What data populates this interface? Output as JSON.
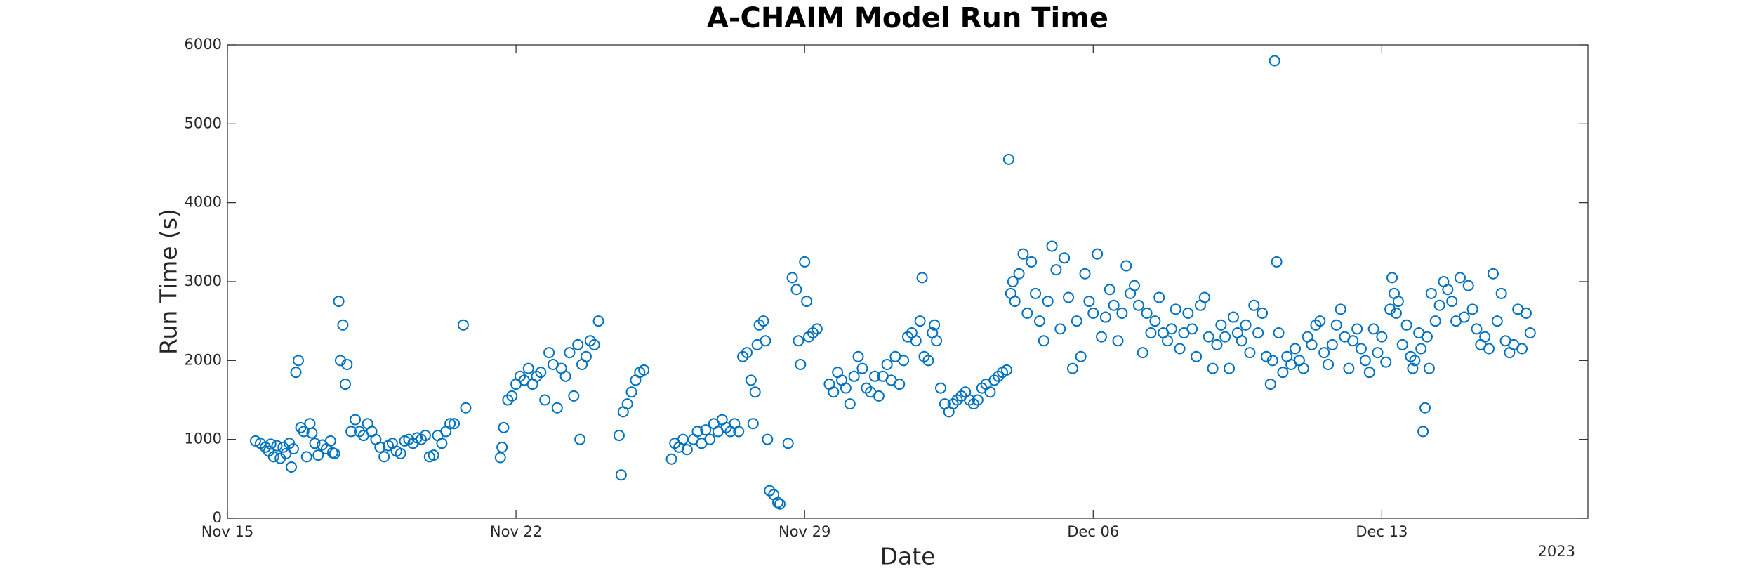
{
  "chart_data": {
    "type": "scatter",
    "title": "A-CHAIM Model Run Time",
    "xlabel": "Date",
    "ylabel": "Run Time (s)",
    "year_label": "2023",
    "xlim": [
      0,
      33
    ],
    "xticks": [
      {
        "value": 0,
        "label": "Nov 15"
      },
      {
        "value": 7,
        "label": "Nov 22"
      },
      {
        "value": 14,
        "label": "Nov 29"
      },
      {
        "value": 21,
        "label": "Dec 06"
      },
      {
        "value": 28,
        "label": "Dec 13"
      }
    ],
    "ylim": [
      0,
      6000
    ],
    "yticks": [
      0,
      1000,
      2000,
      3000,
      4000,
      5000,
      6000
    ],
    "grid": false,
    "marker": "open-circle",
    "x": [
      0.68,
      0.8,
      0.92,
      1.0,
      1.05,
      1.12,
      1.2,
      1.28,
      1.35,
      1.42,
      1.5,
      1.55,
      1.6,
      1.66,
      1.72,
      1.78,
      1.85,
      1.92,
      2.0,
      2.05,
      2.12,
      2.2,
      2.3,
      2.4,
      2.5,
      2.55,
      2.6,
      2.7,
      2.74,
      2.8,
      2.86,
      2.9,
      3.0,
      3.1,
      3.2,
      3.3,
      3.4,
      3.5,
      3.6,
      3.7,
      3.8,
      3.9,
      4.0,
      4.1,
      4.2,
      4.3,
      4.4,
      4.5,
      4.6,
      4.7,
      4.8,
      4.9,
      5.0,
      5.1,
      5.2,
      5.3,
      5.4,
      5.5,
      5.72,
      5.78,
      6.62,
      6.66,
      6.7,
      6.8,
      6.9,
      7.0,
      7.1,
      7.2,
      7.3,
      7.4,
      7.5,
      7.6,
      7.7,
      7.8,
      7.9,
      8.0,
      8.1,
      8.2,
      8.3,
      8.4,
      8.5,
      8.55,
      8.6,
      8.7,
      8.8,
      8.9,
      9.0,
      9.5,
      9.55,
      9.6,
      9.7,
      9.8,
      9.9,
      10.0,
      10.1,
      10.77,
      10.85,
      10.95,
      11.05,
      11.15,
      11.3,
      11.4,
      11.5,
      11.6,
      11.7,
      11.8,
      11.9,
      12.0,
      12.1,
      12.2,
      12.3,
      12.4,
      12.5,
      12.6,
      12.7,
      12.75,
      12.8,
      12.85,
      12.9,
      13.0,
      13.05,
      13.1,
      13.15,
      13.25,
      13.35,
      13.4,
      13.6,
      13.7,
      13.8,
      13.85,
      13.9,
      14.0,
      14.05,
      14.1,
      14.2,
      14.3,
      14.6,
      14.7,
      14.8,
      14.9,
      15.0,
      15.1,
      15.2,
      15.3,
      15.4,
      15.5,
      15.6,
      15.7,
      15.8,
      15.9,
      16.0,
      16.1,
      16.2,
      16.3,
      16.4,
      16.5,
      16.6,
      16.7,
      16.8,
      16.85,
      16.9,
      17.0,
      17.1,
      17.15,
      17.2,
      17.3,
      17.4,
      17.5,
      17.6,
      17.7,
      17.8,
      17.9,
      18.0,
      18.1,
      18.2,
      18.3,
      18.4,
      18.5,
      18.6,
      18.7,
      18.8,
      18.9,
      18.95,
      19.0,
      19.05,
      19.1,
      19.2,
      19.3,
      19.4,
      19.5,
      19.6,
      19.7,
      19.8,
      19.9,
      20.0,
      20.1,
      20.2,
      20.3,
      20.4,
      20.5,
      20.6,
      20.7,
      20.8,
      20.9,
      21.0,
      21.1,
      21.2,
      21.3,
      21.4,
      21.5,
      21.6,
      21.7,
      21.8,
      21.9,
      22.0,
      22.1,
      22.2,
      22.3,
      22.4,
      22.5,
      22.6,
      22.7,
      22.8,
      22.9,
      23.0,
      23.1,
      23.2,
      23.3,
      23.4,
      23.5,
      23.6,
      23.7,
      23.8,
      23.9,
      24.0,
      24.1,
      24.2,
      24.3,
      24.4,
      24.5,
      24.6,
      24.7,
      24.8,
      24.9,
      25.0,
      25.1,
      25.2,
      25.3,
      25.35,
      25.4,
      25.45,
      25.5,
      25.6,
      25.7,
      25.8,
      25.9,
      26.0,
      26.1,
      26.2,
      26.3,
      26.4,
      26.5,
      26.6,
      26.7,
      26.8,
      26.9,
      27.0,
      27.1,
      27.2,
      27.3,
      27.4,
      27.5,
      27.6,
      27.7,
      27.8,
      27.9,
      28.0,
      28.1,
      28.2,
      28.25,
      28.3,
      28.35,
      28.4,
      28.5,
      28.6,
      28.7,
      28.75,
      28.8,
      28.9,
      28.95,
      29.0,
      29.05,
      29.1,
      29.15,
      29.2,
      29.3,
      29.4,
      29.5,
      29.6,
      29.7,
      29.8,
      29.9,
      30.0,
      30.1,
      30.2,
      30.3,
      30.4,
      30.5,
      30.6,
      30.7,
      30.8,
      30.9,
      31.0,
      31.1,
      31.2,
      31.3,
      31.4,
      31.5,
      31.6
    ],
    "series": [
      {
        "name": "Run Time",
        "color": "#0072bd",
        "values": [
          980,
          950,
          900,
          850,
          940,
          780,
          920,
          760,
          900,
          820,
          950,
          650,
          880,
          1850,
          2000,
          1150,
          1100,
          780,
          1200,
          1080,
          950,
          800,
          930,
          880,
          980,
          830,
          820,
          2750,
          2000,
          2450,
          1700,
          1950,
          1100,
          1250,
          1100,
          1050,
          1200,
          1100,
          1000,
          900,
          780,
          920,
          950,
          850,
          820,
          980,
          1000,
          950,
          1020,
          1000,
          1050,
          780,
          800,
          1050,
          950,
          1100,
          1200,
          1200,
          2450,
          1400,
          770,
          900,
          1150,
          1500,
          1550,
          1700,
          1800,
          1750,
          1900,
          1700,
          1800,
          1850,
          1500,
          2100,
          1950,
          1400,
          1900,
          1800,
          2100,
          1550,
          2200,
          1000,
          1950,
          2050,
          2250,
          2200,
          2500,
          1050,
          550,
          1350,
          1450,
          1600,
          1750,
          1850,
          1880,
          750,
          950,
          900,
          1000,
          870,
          1000,
          1100,
          950,
          1120,
          1000,
          1200,
          1100,
          1250,
          1150,
          1100,
          1200,
          1100,
          2050,
          2100,
          1750,
          1200,
          1600,
          2200,
          2450,
          2500,
          2250,
          1000,
          350,
          300,
          200,
          180,
          950,
          3050,
          2900,
          2250,
          1950,
          3250,
          2750,
          2300,
          2350,
          2400,
          1700,
          1600,
          1850,
          1750,
          1650,
          1450,
          1800,
          2050,
          1900,
          1650,
          1600,
          1800,
          1550,
          1800,
          1950,
          1750,
          2050,
          1700,
          2000,
          2300,
          2350,
          2250,
          2500,
          3050,
          2050,
          2000,
          2350,
          2450,
          2250,
          1650,
          1450,
          1350,
          1450,
          1500,
          1550,
          1600,
          1500,
          1450,
          1500,
          1650,
          1700,
          1600,
          1750,
          1800,
          1850,
          1880,
          4550,
          2850,
          3000,
          2750,
          3100,
          3350,
          2600,
          3250,
          2850,
          2500,
          2250,
          2750,
          3450,
          3150,
          2400,
          3300,
          2800,
          1900,
          2500,
          2050,
          3100,
          2750,
          2600,
          3350,
          2300,
          2550,
          2900,
          2700,
          2250,
          2600,
          3200,
          2850,
          2950,
          2700,
          2100,
          2600,
          2350,
          2500,
          2800,
          2350,
          2250,
          2400,
          2650,
          2150,
          2350,
          2600,
          2400,
          2050,
          2700,
          2800,
          2300,
          1900,
          2200,
          2450,
          2300,
          1900,
          2550,
          2350,
          2250,
          2450,
          2100,
          2700,
          2350,
          2600,
          2050,
          1700,
          2000,
          5800,
          3250,
          2350,
          1850,
          2050,
          1950,
          2150,
          2000,
          1900,
          2300,
          2200,
          2450,
          2500,
          2100,
          1950,
          2200,
          2450,
          2650,
          2300,
          1900,
          2250,
          2400,
          2150,
          2000,
          1850,
          2400,
          2100,
          2300,
          1980,
          2650,
          3050,
          2850,
          2600,
          2750,
          2200,
          2450,
          2050,
          1900,
          2000,
          2350,
          2150,
          1100,
          1400,
          2300,
          1900,
          2850,
          2500,
          2700,
          3000,
          2900,
          2750,
          2500,
          3050,
          2550,
          2950,
          2650,
          2400,
          2200,
          2300,
          2150,
          3100,
          2500,
          2850,
          2250,
          2100,
          2200,
          2650,
          2150,
          2600,
          2350
        ]
      }
    ]
  }
}
